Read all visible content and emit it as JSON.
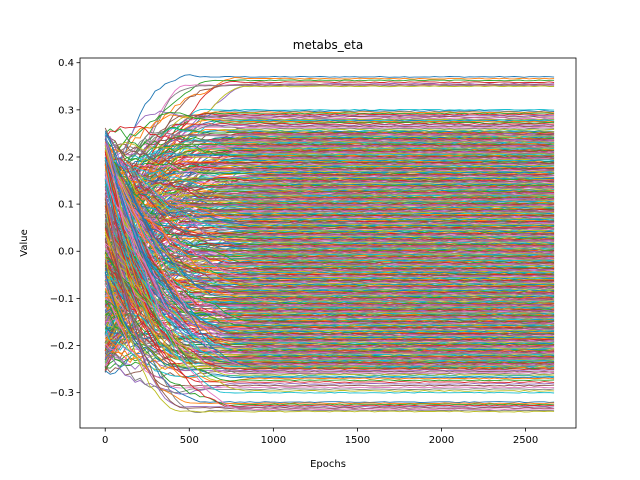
{
  "chart_data": {
    "type": "line",
    "title": "metabs_eta",
    "xlabel": "Epochs",
    "ylabel": "Value",
    "xlim": [
      -150,
      2800
    ],
    "ylim": [
      -0.375,
      0.41
    ],
    "xticks": [
      0,
      500,
      1000,
      1500,
      2000,
      2500
    ],
    "yticks": [
      -0.3,
      -0.2,
      -0.1,
      0.0,
      0.1,
      0.2,
      0.3,
      0.4
    ],
    "xtick_labels": [
      "0",
      "500",
      "1000",
      "1500",
      "2000",
      "2500"
    ],
    "ytick_labels": [
      "−0.3",
      "−0.2",
      "−0.1",
      "0.0",
      "0.1",
      "0.2",
      "0.3",
      "0.4"
    ],
    "x_max_epoch": 2670,
    "grid": false,
    "legend": "none",
    "colors": [
      "#1f77b4",
      "#ff7f0e",
      "#2ca02c",
      "#d62728",
      "#9467bd",
      "#8c564b",
      "#e377c2",
      "#7f7f7f",
      "#bcbd22",
      "#17becf"
    ],
    "series_final_values": [
      0.37,
      0.355,
      0.35,
      0.3,
      0.29,
      0.28,
      0.275,
      0.265,
      0.255,
      0.25,
      0.245,
      0.24,
      0.235,
      0.23,
      0.225,
      0.22,
      0.215,
      0.21,
      0.205,
      0.2,
      0.195,
      0.19,
      0.185,
      0.18,
      0.175,
      0.17,
      0.165,
      0.16,
      0.155,
      0.15,
      0.145,
      0.14,
      0.135,
      0.13,
      0.125,
      0.12,
      0.115,
      0.11,
      0.105,
      0.1,
      0.095,
      0.09,
      0.085,
      0.08,
      0.075,
      0.07,
      0.065,
      0.06,
      0.055,
      0.05,
      0.045,
      0.04,
      0.035,
      0.03,
      0.025,
      0.02,
      0.015,
      0.01,
      0.005,
      0.0,
      -0.005,
      -0.01,
      -0.015,
      -0.02,
      -0.025,
      -0.03,
      -0.035,
      -0.04,
      -0.045,
      -0.05,
      -0.055,
      -0.06,
      -0.065,
      -0.07,
      -0.075,
      -0.08,
      -0.085,
      -0.09,
      -0.095,
      -0.1,
      -0.105,
      -0.11,
      -0.115,
      -0.12,
      -0.125,
      -0.13,
      -0.135,
      -0.14,
      -0.145,
      -0.15,
      -0.155,
      -0.16,
      -0.165,
      -0.17,
      -0.175,
      -0.18,
      -0.185,
      -0.19,
      -0.195,
      -0.2,
      -0.205,
      -0.21,
      -0.215,
      -0.22,
      -0.225,
      -0.23,
      -0.235,
      -0.24,
      -0.245,
      -0.25,
      -0.26,
      -0.27,
      -0.285,
      -0.3,
      -0.32,
      -0.33,
      -0.34
    ]
  }
}
